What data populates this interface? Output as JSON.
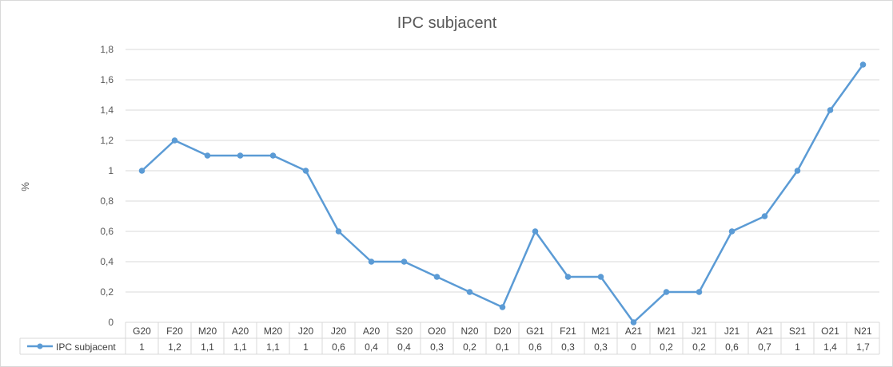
{
  "chart_data": {
    "type": "line",
    "title": "IPC subjacent",
    "ylabel": "%",
    "xlabel": "",
    "ylim": [
      0,
      1.8
    ],
    "yticks": [
      "0",
      "0,2",
      "0,4",
      "0,6",
      "0,8",
      "1",
      "1,2",
      "1,4",
      "1,6",
      "1,8"
    ],
    "grid": true,
    "legend": "data-table-left",
    "categories": [
      "G20",
      "F20",
      "M20",
      "A20",
      "M20",
      "J20",
      "J20",
      "A20",
      "S20",
      "O20",
      "N20",
      "D20",
      "G21",
      "F21",
      "M21",
      "A21",
      "M21",
      "J21",
      "J21",
      "A21",
      "S21",
      "O21",
      "N21"
    ],
    "series": [
      {
        "name": "IPC subjacent",
        "color": "#5b9bd5",
        "values": [
          1,
          1.2,
          1.1,
          1.1,
          1.1,
          1,
          0.6,
          0.4,
          0.4,
          0.3,
          0.2,
          0.1,
          0.6,
          0.3,
          0.3,
          0,
          0.2,
          0.2,
          0.6,
          0.7,
          1,
          1.4,
          1.7
        ],
        "labels": [
          "1",
          "1,2",
          "1,1",
          "1,1",
          "1,1",
          "1",
          "0,6",
          "0,4",
          "0,4",
          "0,3",
          "0,2",
          "0,1",
          "0,6",
          "0,3",
          "0,3",
          "0",
          "0,2",
          "0,2",
          "0,6",
          "0,7",
          "1",
          "1,4",
          "1,7"
        ]
      }
    ]
  }
}
